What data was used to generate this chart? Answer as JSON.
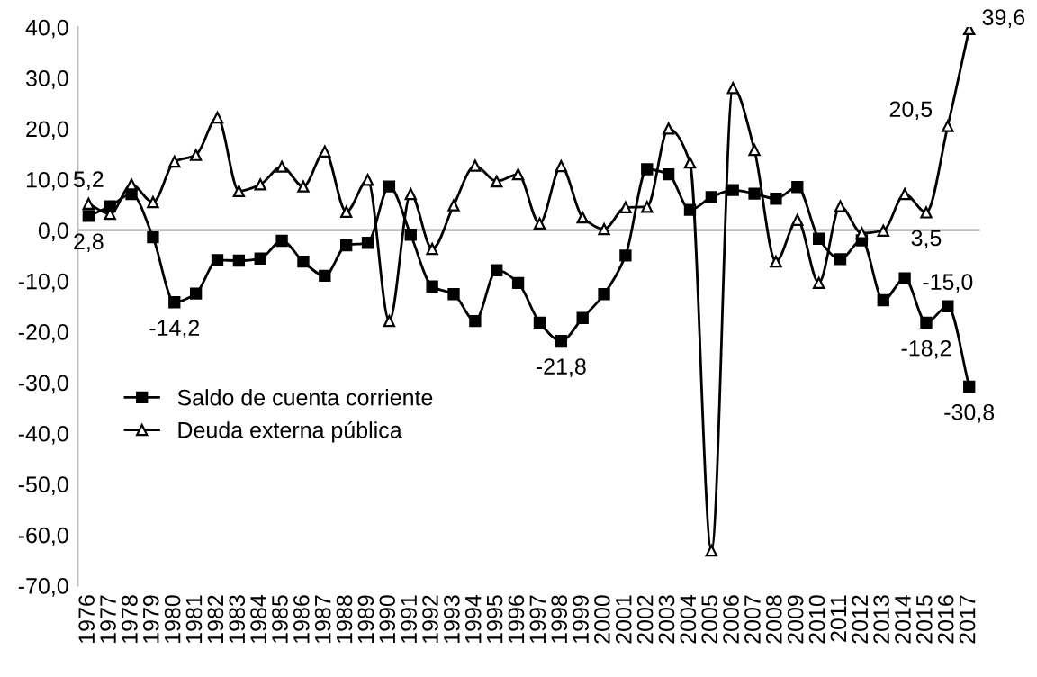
{
  "chart_data": {
    "type": "line",
    "categories": [
      "1976",
      "1977",
      "1978",
      "1979",
      "1980",
      "1981",
      "1982",
      "1983",
      "1984",
      "1985",
      "1986",
      "1987",
      "1988",
      "1989",
      "1990",
      "1991",
      "1992",
      "1993",
      "1994",
      "1995",
      "1996",
      "1997",
      "1998",
      "1999",
      "2000",
      "2001",
      "2002",
      "2003",
      "2004",
      "2005",
      "2006",
      "2007",
      "2008",
      "2009",
      "2010",
      "2011",
      "2012",
      "2013",
      "2014",
      "2015",
      "2016",
      "2017"
    ],
    "series": [
      {
        "name": "Saldo de cuenta corriente",
        "color": "#000000",
        "marker": "square",
        "values": [
          2.8,
          4.7,
          7.1,
          -1.4,
          -14.2,
          -12.5,
          -5.9,
          -6.0,
          -5.6,
          -2.1,
          -6.2,
          -9.0,
          -3.0,
          -2.5,
          8.6,
          -0.9,
          -11.1,
          -12.6,
          -17.9,
          -7.9,
          -10.4,
          -18.2,
          -21.8,
          -17.3,
          -12.6,
          -5.0,
          12.0,
          11.0,
          4.0,
          6.5,
          7.9,
          7.2,
          6.2,
          8.5,
          -1.7,
          -5.7,
          -2.0,
          -13.8,
          -9.5,
          -18.2,
          -15.0,
          -30.8
        ],
        "value_labels": [
          "2,8",
          null,
          null,
          null,
          "-14,2",
          null,
          null,
          null,
          null,
          null,
          null,
          null,
          null,
          null,
          null,
          null,
          null,
          null,
          null,
          null,
          null,
          null,
          "-21,8",
          null,
          null,
          null,
          null,
          null,
          null,
          null,
          null,
          null,
          null,
          null,
          null,
          null,
          null,
          null,
          null,
          "-18,2",
          "-15,0",
          "-30,8"
        ]
      },
      {
        "name": "Deuda externa pública",
        "color": "#000000",
        "marker": "triangle",
        "values": [
          5.2,
          3.2,
          9.0,
          5.5,
          13.5,
          14.8,
          22.2,
          7.7,
          9.0,
          12.5,
          8.6,
          15.5,
          3.6,
          9.9,
          -17.9,
          7.1,
          -3.7,
          4.9,
          12.7,
          9.6,
          11.0,
          1.3,
          12.6,
          2.5,
          0.2,
          4.5,
          4.6,
          20.0,
          13.3,
          -63.1,
          28.0,
          15.8,
          -6.2,
          2.0,
          -10.4,
          4.7,
          -0.6,
          -0.1,
          7.1,
          3.5,
          20.5,
          39.6
        ],
        "value_labels": [
          "5,2",
          null,
          null,
          null,
          null,
          null,
          null,
          null,
          null,
          null,
          null,
          null,
          null,
          null,
          null,
          null,
          null,
          null,
          null,
          null,
          null,
          null,
          null,
          null,
          null,
          null,
          null,
          null,
          null,
          null,
          null,
          null,
          null,
          null,
          null,
          null,
          null,
          null,
          null,
          "3,5",
          "20,5",
          "39,6"
        ]
      }
    ],
    "ylim": [
      -70,
      40
    ],
    "yticks": [
      {
        "value": -70,
        "label": "-70,0"
      },
      {
        "value": -60,
        "label": "-60,0"
      },
      {
        "value": -50,
        "label": "-50,0"
      },
      {
        "value": -40,
        "label": "-40,0"
      },
      {
        "value": -30,
        "label": "-30,0"
      },
      {
        "value": -20,
        "label": "-20,0"
      },
      {
        "value": -10,
        "label": "-10,0"
      },
      {
        "value": 0,
        "label": "0,0"
      },
      {
        "value": 10,
        "label": "10,0"
      },
      {
        "value": 20,
        "label": "20,0"
      },
      {
        "value": 30,
        "label": "30,0"
      },
      {
        "value": 40,
        "label": "40,0"
      }
    ],
    "ref_lines": [
      {
        "axis": "y",
        "value": 0,
        "color": "#c0c0c0"
      }
    ],
    "legend": "bottom left",
    "grid": false,
    "line_style": "solid"
  }
}
